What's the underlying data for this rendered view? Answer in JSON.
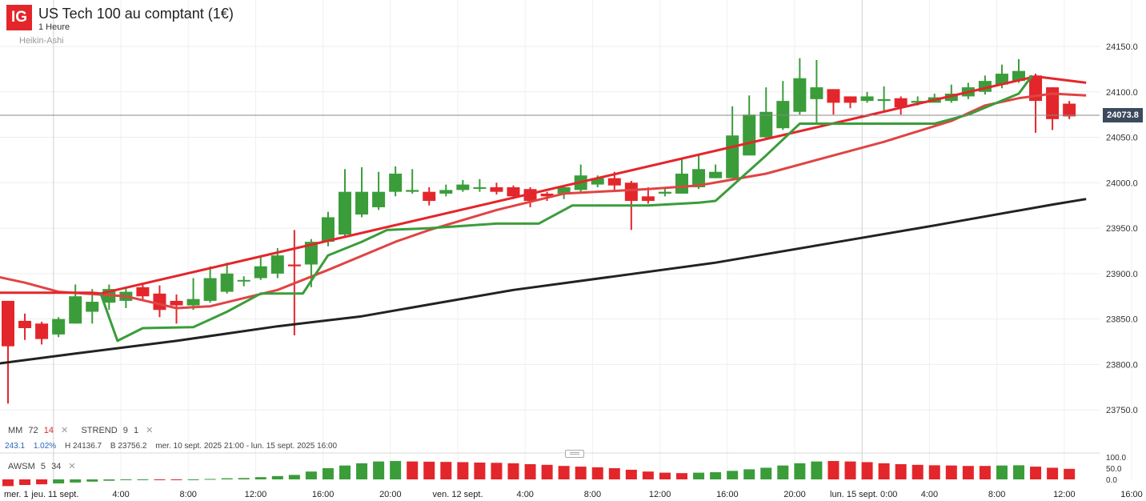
{
  "header": {
    "logo": "IG",
    "title": "US Tech 100 au comptant (1€)",
    "interval": "1 Heure",
    "chart_type": "Heikin-Ashi"
  },
  "legend": {
    "mm_label": "MM",
    "mm_p1": "72",
    "mm_p2": "14",
    "strend_label": "STREND",
    "strend_p1": "9",
    "strend_p2": "1",
    "close_glyph": "✕"
  },
  "stats": {
    "change": "243.1",
    "change_pct": "1.02%",
    "high": "H 24136.7",
    "low": "B 23756.2",
    "range": "mer. 10 sept. 2025 21:00 - lun. 15 sept. 2025 16:00"
  },
  "oscillator": {
    "label": "AWSM",
    "p1": "5",
    "p2": "34"
  },
  "last_price": "24073.8",
  "colors": {
    "up": "#3a9d3a",
    "down": "#e3262b",
    "ma_slow": "#222222",
    "ma_fast": "#e04444",
    "supertrend_up": "#3a9d3a",
    "supertrend_down": "#e3262b",
    "price_tag_bg": "#3b4a5c"
  },
  "chart_data": {
    "type": "candlestick",
    "ylim": [
      23700,
      24180
    ],
    "y_ticks": [
      "24150.0",
      "24100.0",
      "24050.0",
      "24000.0",
      "23950.0",
      "23900.0",
      "23850.0",
      "23800.0",
      "23750.0"
    ],
    "y_tick_values": [
      24150,
      24100,
      24050,
      24000,
      23950,
      23900,
      23850,
      23800,
      23750
    ],
    "x_ticks": [
      {
        "label": "mer. 1",
        "i": -0.7
      },
      {
        "label": "jeu. 11 sept.",
        "i": 2.7
      },
      {
        "label": "4:00",
        "i": 6.7
      },
      {
        "label": "8:00",
        "i": 10.7
      },
      {
        "label": "12:00",
        "i": 14.7
      },
      {
        "label": "16:00",
        "i": 18.7
      },
      {
        "label": "20:00",
        "i": 22.7
      },
      {
        "label": "ven. 12 sept.",
        "i": 26.7
      },
      {
        "label": "4:00",
        "i": 30.7
      },
      {
        "label": "8:00",
        "i": 34.7
      },
      {
        "label": "12:00",
        "i": 38.7
      },
      {
        "label": "16:00",
        "i": 42.7
      },
      {
        "label": "20:00",
        "i": 46.7
      },
      {
        "label": "lun. 15 sept. 0:00",
        "i": 50.7
      },
      {
        "label": "4:00",
        "i": 54.7
      },
      {
        "label": "8:00",
        "i": 58.7
      },
      {
        "label": "12:00",
        "i": 62.7
      },
      {
        "label": "16:00",
        "i": 66.7
      }
    ],
    "day_separators": [
      2.7,
      50.7
    ],
    "osc_ticks": [
      "100.0",
      "50.0",
      "0.0"
    ],
    "osc_tick_values": [
      100,
      50,
      0
    ],
    "osc_ylim": [
      -10,
      105
    ],
    "candles": [
      [
        23870,
        23820,
        23870,
        23757
      ],
      [
        23848,
        23840,
        23856,
        23827
      ],
      [
        23845,
        23828,
        23847,
        23822
      ],
      [
        23833,
        23850,
        23852,
        23830
      ],
      [
        23845,
        23875,
        23888,
        23845
      ],
      [
        23858,
        23869,
        23883,
        23845
      ],
      [
        23868,
        23883,
        23888,
        23860
      ],
      [
        23870,
        23880,
        23885,
        23862
      ],
      [
        23885,
        23875,
        23890,
        23870
      ],
      [
        23878,
        23860,
        23887,
        23852
      ],
      [
        23870,
        23865,
        23877,
        23845
      ],
      [
        23865,
        23872,
        23895,
        23860
      ],
      [
        23870,
        23895,
        23908,
        23868
      ],
      [
        23880,
        23900,
        23912,
        23878
      ],
      [
        23892,
        23893,
        23897,
        23886
      ],
      [
        23895,
        23908,
        23918,
        23893
      ],
      [
        23900,
        23920,
        23928,
        23895
      ],
      [
        23910,
        23908,
        23948,
        23832
      ],
      [
        23910,
        23935,
        23938,
        23885
      ],
      [
        23935,
        23962,
        23968,
        23930
      ],
      [
        23943,
        23990,
        24015,
        23940
      ],
      [
        23965,
        23990,
        24017,
        23962
      ],
      [
        23973,
        23990,
        24012,
        23970
      ],
      [
        23990,
        24010,
        24018,
        23985
      ],
      [
        23990,
        23992,
        24015,
        23988
      ],
      [
        23990,
        23980,
        23995,
        23975
      ],
      [
        23988,
        23992,
        23998,
        23985
      ],
      [
        23992,
        23998,
        24003,
        23990
      ],
      [
        23994,
        23995,
        24004,
        23990
      ],
      [
        23995,
        23990,
        24000,
        23987
      ],
      [
        23995,
        23985,
        23997,
        23982
      ],
      [
        23993,
        23980,
        23995,
        23973
      ],
      [
        23988,
        23985,
        23990,
        23980
      ],
      [
        23988,
        23995,
        23996,
        23982
      ],
      [
        23992,
        24008,
        24020,
        23990
      ],
      [
        23998,
        24005,
        24008,
        23995
      ],
      [
        24005,
        23997,
        24012,
        23990
      ],
      [
        24000,
        23980,
        24002,
        23948
      ],
      [
        23985,
        23980,
        23995,
        23977
      ],
      [
        23988,
        23990,
        23994,
        23985
      ],
      [
        23988,
        24010,
        24026,
        23988
      ],
      [
        23995,
        24015,
        24030,
        23993
      ],
      [
        24005,
        24012,
        24020,
        24005
      ],
      [
        24005,
        24052,
        24084,
        24005
      ],
      [
        24030,
        24075,
        24096,
        24030
      ],
      [
        24050,
        24078,
        24105,
        24048
      ],
      [
        24060,
        24090,
        24112,
        24058
      ],
      [
        24078,
        24115,
        24137,
        24075
      ],
      [
        24092,
        24105,
        24135,
        24065
      ],
      [
        24103,
        24088,
        24103,
        24075
      ],
      [
        24095,
        24088,
        24095,
        24082
      ],
      [
        24090,
        24095,
        24100,
        24088
      ],
      [
        24090,
        24092,
        24106,
        24079
      ],
      [
        24093,
        24083,
        24095,
        24075
      ],
      [
        24088,
        24090,
        24095,
        24085
      ],
      [
        24088,
        24094,
        24098,
        24090
      ],
      [
        24090,
        24098,
        24108,
        24088
      ],
      [
        24095,
        24105,
        24110,
        24092
      ],
      [
        24100,
        24112,
        24118,
        24097
      ],
      [
        24108,
        24120,
        24130,
        24104
      ],
      [
        24112,
        24123,
        24136,
        24110
      ],
      [
        24118,
        24090,
        24120,
        24055
      ],
      [
        24105,
        24070,
        24105,
        24058
      ],
      [
        24087,
        24073,
        24090,
        24070
      ]
    ],
    "ma_slow": [
      [
        -1,
        23800
      ],
      [
        4,
        23812
      ],
      [
        10,
        23826
      ],
      [
        16,
        23842
      ],
      [
        21,
        23853
      ],
      [
        25,
        23866
      ],
      [
        30,
        23882
      ],
      [
        36,
        23897
      ],
      [
        42,
        23912
      ],
      [
        49,
        23934
      ],
      [
        55,
        23953
      ],
      [
        62,
        23976
      ],
      [
        64,
        23982
      ]
    ],
    "ma_fast": [
      [
        -1,
        23898
      ],
      [
        1,
        23890
      ],
      [
        3,
        23880
      ],
      [
        7,
        23875
      ],
      [
        10,
        23862
      ],
      [
        12,
        23864
      ],
      [
        16,
        23882
      ],
      [
        19,
        23904
      ],
      [
        23,
        23935
      ],
      [
        25,
        23948
      ],
      [
        29,
        23970
      ],
      [
        33,
        23988
      ],
      [
        38,
        23993
      ],
      [
        41,
        23997
      ],
      [
        45,
        24010
      ],
      [
        49,
        24030
      ],
      [
        52,
        24045
      ],
      [
        56,
        24068
      ],
      [
        58,
        24085
      ],
      [
        60,
        24093
      ],
      [
        62,
        24098
      ],
      [
        64,
        24096
      ]
    ],
    "supertrend_down": [
      [
        -1,
        23879
      ],
      [
        5,
        23879
      ],
      [
        5.5,
        23878
      ],
      [
        61,
        24117
      ],
      [
        64,
        24110
      ]
    ],
    "supertrend_up": [
      [
        5.5,
        23878
      ],
      [
        6.5,
        23826
      ],
      [
        8,
        23840
      ],
      [
        11,
        23841
      ],
      [
        13,
        23858
      ],
      [
        15,
        23878
      ],
      [
        17.5,
        23878
      ],
      [
        19,
        23920
      ],
      [
        21,
        23935
      ],
      [
        22.5,
        23948
      ],
      [
        25,
        23950
      ],
      [
        29,
        23955
      ],
      [
        31.5,
        23955
      ],
      [
        33.5,
        23975
      ],
      [
        38,
        23975
      ],
      [
        41,
        23978
      ],
      [
        42,
        23980
      ],
      [
        45,
        24030
      ],
      [
        47,
        24065
      ],
      [
        55,
        24065
      ],
      [
        57,
        24075
      ],
      [
        60,
        24098
      ],
      [
        60.8,
        24118
      ]
    ],
    "awesome": [
      [
        -30,
        "d"
      ],
      [
        -25,
        "d"
      ],
      [
        -22,
        "d"
      ],
      [
        -18,
        "u"
      ],
      [
        -14,
        "u"
      ],
      [
        -10,
        "u"
      ],
      [
        -6,
        "u"
      ],
      [
        -3,
        "u"
      ],
      [
        -1,
        "u"
      ],
      [
        0,
        "d"
      ],
      [
        -1,
        "d"
      ],
      [
        0,
        "u"
      ],
      [
        2,
        "u"
      ],
      [
        5,
        "u"
      ],
      [
        6,
        "u"
      ],
      [
        10,
        "u"
      ],
      [
        15,
        "u"
      ],
      [
        20,
        "u"
      ],
      [
        35,
        "u"
      ],
      [
        50,
        "u"
      ],
      [
        62,
        "u"
      ],
      [
        72,
        "u"
      ],
      [
        80,
        "u"
      ],
      [
        82,
        "u"
      ],
      [
        80,
        "d"
      ],
      [
        79,
        "d"
      ],
      [
        78,
        "d"
      ],
      [
        77,
        "d"
      ],
      [
        75,
        "d"
      ],
      [
        74,
        "d"
      ],
      [
        72,
        "d"
      ],
      [
        68,
        "d"
      ],
      [
        65,
        "d"
      ],
      [
        60,
        "d"
      ],
      [
        57,
        "d"
      ],
      [
        54,
        "d"
      ],
      [
        50,
        "d"
      ],
      [
        43,
        "d"
      ],
      [
        35,
        "d"
      ],
      [
        30,
        "d"
      ],
      [
        28,
        "d"
      ],
      [
        30,
        "u"
      ],
      [
        32,
        "u"
      ],
      [
        38,
        "u"
      ],
      [
        45,
        "u"
      ],
      [
        52,
        "u"
      ],
      [
        62,
        "u"
      ],
      [
        72,
        "u"
      ],
      [
        80,
        "u"
      ],
      [
        82,
        "d"
      ],
      [
        80,
        "d"
      ],
      [
        77,
        "d"
      ],
      [
        72,
        "d"
      ],
      [
        68,
        "d"
      ],
      [
        65,
        "d"
      ],
      [
        63,
        "d"
      ],
      [
        62,
        "d"
      ],
      [
        60,
        "d"
      ],
      [
        60,
        "d"
      ],
      [
        62,
        "u"
      ],
      [
        63,
        "u"
      ],
      [
        57,
        "d"
      ],
      [
        52,
        "d"
      ],
      [
        47,
        "d"
      ]
    ]
  }
}
